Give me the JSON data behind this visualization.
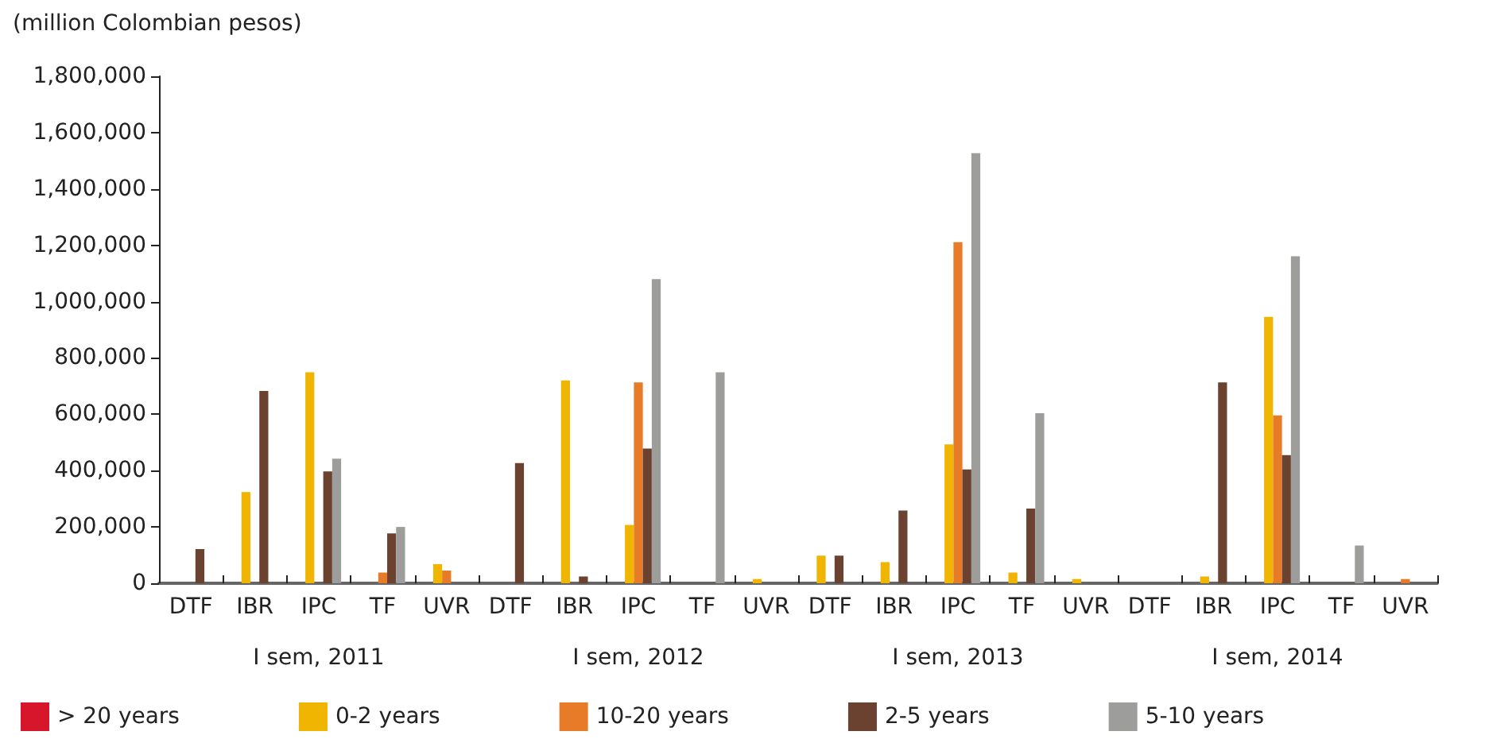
{
  "chart_data": {
    "type": "bar",
    "ylabel": "(million Colombian pesos)",
    "categories": [
      "DTF",
      "IBR",
      "IPC",
      "TF",
      "UVR",
      "DTF",
      "IBR",
      "IPC",
      "TF",
      "UVR",
      "DTF",
      "IBR",
      "IPC",
      "TF",
      "UVR",
      "DTF",
      "IBR",
      "IPC",
      "TF",
      "UVR"
    ],
    "annotations": [
      "I sem, 2011",
      "I sem, 2012",
      "I sem, 2013",
      "I sem, 2014"
    ],
    "series": [
      {
        "name": "> 20 years",
        "color": "#d7152b",
        "values": [
          null,
          null,
          null,
          null,
          null,
          null,
          null,
          null,
          null,
          null,
          null,
          null,
          null,
          null,
          null,
          null,
          null,
          null,
          null,
          null
        ]
      },
      {
        "name": "0-2 years",
        "color": "#efb500",
        "values": [
          null,
          324000,
          749000,
          null,
          68000,
          null,
          720000,
          207000,
          null,
          15000,
          98000,
          75000,
          493000,
          38000,
          15000,
          null,
          24000,
          946000,
          null,
          null
        ]
      },
      {
        "name": "10-20 years",
        "color": "#e87b27",
        "values": [
          null,
          null,
          null,
          38000,
          45000,
          null,
          null,
          713000,
          null,
          null,
          null,
          null,
          1211000,
          null,
          null,
          null,
          null,
          596000,
          null,
          15000
        ]
      },
      {
        "name": "2-5 years",
        "color": "#6b412f",
        "values": [
          121000,
          683000,
          397000,
          177000,
          null,
          427000,
          24000,
          478000,
          null,
          null,
          98000,
          258000,
          404000,
          265000,
          null,
          null,
          713000,
          455000,
          null,
          null
        ]
      },
      {
        "name": "5-10 years",
        "color": "#9d9d9c",
        "values": [
          null,
          null,
          442000,
          200000,
          null,
          null,
          null,
          1080000,
          749000,
          null,
          null,
          null,
          1527000,
          604000,
          null,
          null,
          null,
          1161000,
          134000,
          null
        ]
      }
    ],
    "ylim": [
      0,
      1800000
    ],
    "yticks": [
      0,
      {
        "value": 200000,
        "label": "200,000"
      },
      {
        "value": 400000,
        "label": "400,000"
      },
      {
        "value": 600000,
        "label": "600,000"
      },
      {
        "value": 800000,
        "label": "800,000"
      },
      {
        "value": 1000000,
        "label": "1,000,000"
      },
      {
        "value": 1200000,
        "label": "1,200,000"
      },
      {
        "value": 1400000,
        "label": "1,400,000"
      },
      {
        "value": 1600000,
        "label": "1,600,000"
      },
      {
        "value": 1800000,
        "label": "1,800,000"
      }
    ],
    "grid": false,
    "legend": "bottom"
  }
}
